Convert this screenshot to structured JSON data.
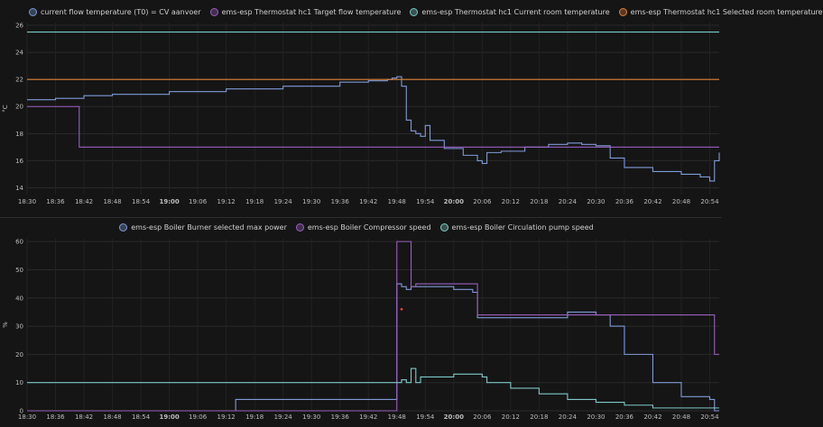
{
  "chart_data": [
    {
      "type": "line",
      "ylabel": "°C",
      "ylim": [
        13.5,
        26.2
      ],
      "yticks": [
        "14",
        "16",
        "18",
        "20",
        "22",
        "24",
        "26"
      ],
      "x_ticks": [
        "18:30",
        "18:36",
        "18:42",
        "18:48",
        "18:54",
        "19:00",
        "19:06",
        "19:12",
        "19:18",
        "19:24",
        "19:30",
        "19:36",
        "19:42",
        "19:48",
        "19:54",
        "20:00",
        "20:06",
        "20:12",
        "20:18",
        "20:24",
        "20:30",
        "20:36",
        "20:42",
        "20:48",
        "20:54"
      ],
      "xlim": [
        "18:30",
        "20:56"
      ],
      "grid": true,
      "legend_position": "top-left",
      "series": [
        {
          "name": "current flow temperature (T0) = CV aanvoer",
          "color": "#7f9ad8",
          "x": [
            "18:30",
            "18:33",
            "18:36",
            "18:42",
            "18:48",
            "19:00",
            "19:12",
            "19:24",
            "19:36",
            "19:42",
            "19:46",
            "19:47",
            "19:48",
            "19:49",
            "19:50",
            "19:51",
            "19:52",
            "19:53",
            "19:54",
            "19:55",
            "19:58",
            "20:02",
            "20:05",
            "20:06",
            "20:07",
            "20:10",
            "20:15",
            "20:20",
            "20:24",
            "20:27",
            "20:30",
            "20:33",
            "20:36",
            "20:42",
            "20:48",
            "20:52",
            "20:54",
            "20:55",
            "20:56"
          ],
          "y": [
            20.5,
            20.5,
            20.6,
            20.8,
            20.9,
            21.1,
            21.3,
            21.5,
            21.8,
            21.9,
            22.0,
            22.1,
            22.2,
            21.5,
            19.0,
            18.2,
            18.0,
            17.8,
            18.6,
            17.5,
            16.9,
            16.4,
            16.0,
            15.8,
            16.6,
            16.7,
            17.0,
            17.2,
            17.3,
            17.2,
            17.1,
            16.2,
            15.5,
            15.2,
            15.0,
            14.8,
            14.5,
            16.0,
            16.6
          ]
        },
        {
          "name": "ems-esp Thermostat hc1 Target flow temperature",
          "color": "#9b5fc0",
          "x": [
            "18:30",
            "18:41",
            "18:41",
            "20:56"
          ],
          "y": [
            20.0,
            20.0,
            17.0,
            17.0
          ]
        },
        {
          "name": "ems-esp Thermostat hc1 Current room temperature",
          "color": "#7ec8c8",
          "x": [
            "18:30",
            "20:56"
          ],
          "y": [
            25.5,
            25.5
          ]
        },
        {
          "name": "ems-esp Thermostat hc1 Selected room temperature",
          "color": "#e0823a",
          "x": [
            "18:30",
            "20:56"
          ],
          "y": [
            22.0,
            22.0
          ]
        }
      ]
    },
    {
      "type": "line",
      "ylabel": "%",
      "ylim": [
        0,
        61
      ],
      "yticks": [
        "0",
        "10",
        "20",
        "30",
        "40",
        "50",
        "60"
      ],
      "x_ticks": [
        "18:30",
        "18:36",
        "18:42",
        "18:48",
        "18:54",
        "19:00",
        "19:06",
        "19:12",
        "19:18",
        "19:24",
        "19:30",
        "19:36",
        "19:42",
        "19:48",
        "19:54",
        "20:00",
        "20:06",
        "20:12",
        "20:18",
        "20:24",
        "20:30",
        "20:36",
        "20:42",
        "20:48",
        "20:54"
      ],
      "xlim": [
        "18:30",
        "20:56"
      ],
      "grid": true,
      "legend_position": "top-center",
      "series": [
        {
          "name": "ems-esp Boiler Burner selected max power",
          "color": "#7f9ad8",
          "x": [
            "18:30",
            "19:14",
            "19:14",
            "19:19",
            "19:48",
            "19:49",
            "19:50",
            "19:51",
            "19:52",
            "19:55",
            "20:00",
            "20:04",
            "20:05",
            "20:05",
            "20:24",
            "20:30",
            "20:33",
            "20:36",
            "20:42",
            "20:48",
            "20:54",
            "20:55",
            "20:55",
            "20:56"
          ],
          "y": [
            0,
            0,
            4,
            4,
            45,
            44,
            43,
            44,
            44,
            44,
            43,
            42,
            33,
            33,
            35,
            34,
            30,
            20,
            10,
            5,
            4,
            4,
            0,
            0
          ]
        },
        {
          "name": "ems-esp Boiler Compressor speed",
          "color": "#9b5fc0",
          "x": [
            "18:30",
            "19:47",
            "19:48",
            "19:49",
            "19:50",
            "19:51",
            "19:52",
            "19:55",
            "20:05",
            "20:05",
            "20:55",
            "20:55",
            "20:56"
          ],
          "y": [
            0,
            0,
            60,
            60,
            60,
            44,
            45,
            45,
            45,
            34,
            34,
            20,
            20
          ]
        },
        {
          "name": "ems-esp Boiler Circulation pump speed",
          "color": "#7ec8c8",
          "x": [
            "18:30",
            "19:48",
            "19:49",
            "19:50",
            "19:51",
            "19:52",
            "19:53",
            "19:56",
            "20:00",
            "20:04",
            "20:06",
            "20:07",
            "20:12",
            "20:18",
            "20:24",
            "20:30",
            "20:36",
            "20:42",
            "20:48",
            "20:54",
            "20:56"
          ],
          "y": [
            10,
            10,
            11,
            10,
            15,
            10,
            12,
            12,
            13,
            13,
            12,
            10,
            8,
            6,
            4,
            3,
            2,
            1,
            1,
            1,
            1
          ]
        }
      ],
      "annotations": [
        {
          "x": "19:49",
          "y": 36,
          "color": "#e04040"
        }
      ]
    }
  ]
}
